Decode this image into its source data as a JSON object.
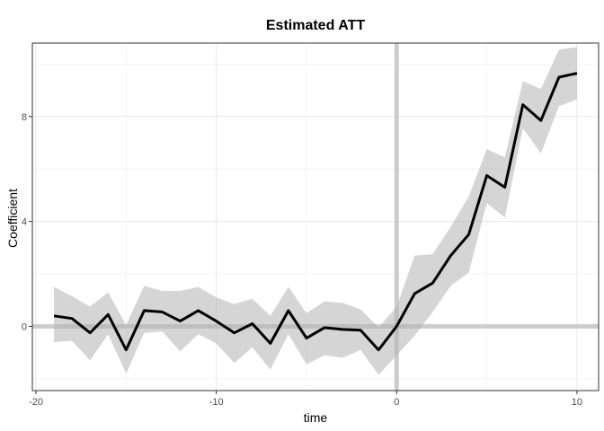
{
  "chart_data": {
    "type": "line",
    "title": "Estimated ATT",
    "xlabel": "time",
    "ylabel": "Coefficient",
    "xlim": [
      -20.2,
      11.2
    ],
    "ylim": [
      -2.45,
      10.8
    ],
    "x_ticks": [
      -20,
      -10,
      0,
      10
    ],
    "x_tick_labels": [
      "-20",
      "-10",
      "0",
      "10"
    ],
    "y_ticks": [
      0,
      4,
      8
    ],
    "y_tick_labels": [
      "0",
      "4",
      "8"
    ],
    "grid": true,
    "reference_lines": {
      "x": 0,
      "y": 0
    },
    "series": [
      {
        "x": [
          -19,
          -18,
          -17,
          -16,
          -15,
          -14,
          -13,
          -12,
          -11,
          -10,
          -9,
          -8,
          -7,
          -6,
          -5,
          -4,
          -3,
          -2,
          -1,
          0,
          1,
          2,
          3,
          4,
          5,
          6,
          7,
          8,
          9,
          10
        ],
        "values": [
          0.4,
          0.3,
          -0.25,
          0.45,
          -0.9,
          0.6,
          0.55,
          0.2,
          0.6,
          0.2,
          -0.25,
          0.1,
          -0.65,
          0.6,
          -0.45,
          -0.05,
          -0.12,
          -0.15,
          -0.9,
          0.0,
          1.25,
          1.65,
          2.7,
          3.5,
          5.75,
          5.3,
          8.45,
          7.85,
          9.5,
          9.65
        ],
        "lower": [
          -0.6,
          -0.55,
          -1.3,
          -0.3,
          -1.8,
          -0.25,
          -0.2,
          -0.95,
          -0.3,
          -0.65,
          -1.4,
          -0.8,
          -1.65,
          -0.3,
          -1.45,
          -1.1,
          -1.2,
          -0.9,
          -1.85,
          -1.1,
          -0.35,
          0.55,
          1.55,
          2.05,
          4.7,
          4.15,
          7.55,
          6.6,
          8.4,
          8.65
        ],
        "upper": [
          1.5,
          1.15,
          0.75,
          1.3,
          0.05,
          1.55,
          1.35,
          1.35,
          1.5,
          1.1,
          0.85,
          1.05,
          0.4,
          1.5,
          0.5,
          0.95,
          0.9,
          0.65,
          -0.05,
          0.75,
          2.7,
          2.75,
          3.8,
          4.95,
          6.75,
          6.45,
          9.35,
          9.05,
          10.55,
          10.65
        ]
      }
    ]
  }
}
